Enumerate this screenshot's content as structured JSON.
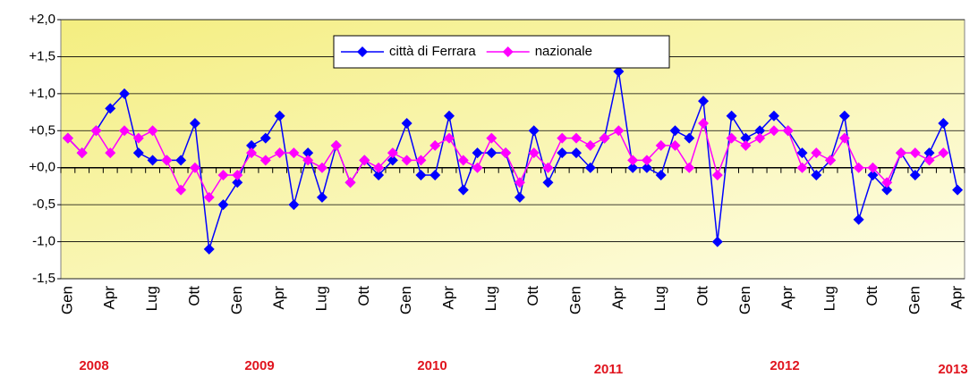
{
  "chart_data": {
    "type": "line",
    "categories": [
      "Gen",
      null,
      null,
      "Apr",
      null,
      null,
      "Lug",
      null,
      null,
      "Ott",
      null,
      null,
      "Gen",
      null,
      null,
      "Apr",
      null,
      null,
      "Lug",
      null,
      null,
      "Ott",
      null,
      null,
      "Gen",
      null,
      null,
      "Apr",
      null,
      null,
      "Lug",
      null,
      null,
      "Ott",
      null,
      null,
      "Gen",
      null,
      null,
      "Apr",
      null,
      null,
      "Lug",
      null,
      null,
      "Ott",
      null,
      null,
      "Gen",
      null,
      null,
      "Apr",
      null,
      null,
      "Lug",
      null,
      null,
      "Ott",
      null,
      null,
      "Gen",
      null,
      null,
      "Apr"
    ],
    "series": [
      {
        "name": "città di Ferrara",
        "color": "#0000ff",
        "values": [
          0.4,
          0.2,
          0.5,
          0.8,
          1.0,
          0.2,
          0.1,
          0.1,
          0.1,
          0.6,
          -1.1,
          -0.5,
          -0.2,
          0.3,
          0.4,
          0.7,
          -0.5,
          0.2,
          -0.4,
          0.3,
          -0.2,
          0.1,
          -0.1,
          0.1,
          0.6,
          -0.1,
          -0.1,
          0.7,
          -0.3,
          0.2,
          0.2,
          0.2,
          -0.4,
          0.5,
          -0.2,
          0.2,
          0.2,
          0.0,
          0.4,
          1.3,
          0.0,
          0.0,
          -0.1,
          0.5,
          0.4,
          0.9,
          -1.0,
          0.7,
          0.4,
          0.5,
          0.7,
          0.5,
          0.2,
          -0.1,
          0.1,
          0.7,
          -0.7,
          -0.1,
          -0.3,
          0.2,
          -0.1,
          0.2,
          0.6,
          -0.3
        ]
      },
      {
        "name": "nazionale",
        "color": "#ff00ff",
        "values": [
          0.4,
          0.2,
          0.5,
          0.2,
          0.5,
          0.4,
          0.5,
          0.1,
          -0.3,
          0.0,
          -0.4,
          -0.1,
          -0.1,
          0.2,
          0.1,
          0.2,
          0.2,
          0.1,
          0.0,
          0.3,
          -0.2,
          0.1,
          0.0,
          0.2,
          0.1,
          0.1,
          0.3,
          0.4,
          0.1,
          0.0,
          0.4,
          0.2,
          -0.2,
          0.2,
          0.0,
          0.4,
          0.4,
          0.3,
          0.4,
          0.5,
          0.1,
          0.1,
          0.3,
          0.3,
          0.0,
          0.6,
          -0.1,
          0.4,
          0.3,
          0.4,
          0.5,
          0.5,
          0.0,
          0.2,
          0.1,
          0.4,
          0.0,
          0.0,
          -0.2,
          0.2,
          0.2,
          0.1,
          0.2,
          null
        ]
      }
    ],
    "ylim": [
      -1.5,
      2.0
    ],
    "yticks": [
      {
        "value": 2.0,
        "label": "+2,0"
      },
      {
        "value": 1.5,
        "label": "+1,5"
      },
      {
        "value": 1.0,
        "label": "+1,0"
      },
      {
        "value": 0.5,
        "label": "+0,5"
      },
      {
        "value": 0,
        "label": "+0,0"
      },
      {
        "value": -0.5,
        "label": "-0,5"
      },
      {
        "value": -1.0,
        "label": "-1,0"
      },
      {
        "value": -1.5,
        "label": "-1,5"
      }
    ],
    "grid": true,
    "legend": "top",
    "annotations": [
      "2008",
      "2009",
      "2010",
      "2011",
      "2012",
      "2013"
    ]
  }
}
